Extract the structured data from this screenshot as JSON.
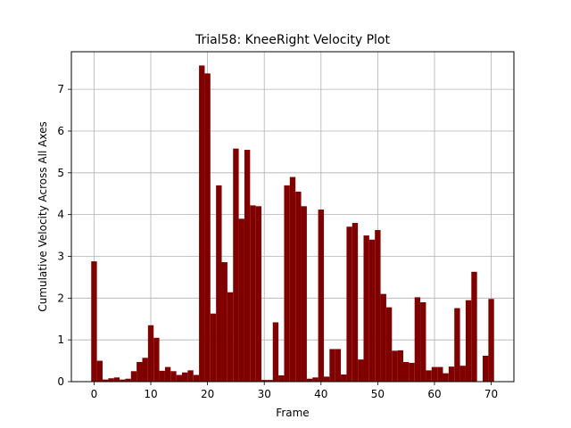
{
  "chart_data": {
    "type": "bar",
    "title": "Trial58: KneeRight Velocity Plot",
    "xlabel": "Frame",
    "ylabel": "Cumulative Velocity Across All Axes",
    "xlim": [
      -4,
      74
    ],
    "ylim": [
      0,
      7.9
    ],
    "xticks": [
      0,
      10,
      20,
      30,
      40,
      50,
      60,
      70
    ],
    "yticks": [
      0,
      1,
      2,
      3,
      4,
      5,
      6,
      7
    ],
    "grid": true,
    "bar_color": "#800000",
    "x": [
      0,
      1,
      2,
      3,
      4,
      5,
      6,
      7,
      8,
      9,
      10,
      11,
      12,
      13,
      14,
      15,
      16,
      17,
      18,
      19,
      20,
      21,
      22,
      23,
      24,
      25,
      26,
      27,
      28,
      29,
      30,
      31,
      32,
      33,
      34,
      35,
      36,
      37,
      38,
      39,
      40,
      41,
      42,
      43,
      44,
      45,
      46,
      47,
      48,
      49,
      50,
      51,
      52,
      53,
      54,
      55,
      56,
      57,
      58,
      59,
      60,
      61,
      62,
      63,
      64,
      65,
      66,
      67,
      68,
      69,
      70
    ],
    "values": [
      2.88,
      0.5,
      0.05,
      0.08,
      0.1,
      0.05,
      0.07,
      0.25,
      0.47,
      0.57,
      1.35,
      1.05,
      0.26,
      0.35,
      0.25,
      0.16,
      0.22,
      0.27,
      0.16,
      7.57,
      7.38,
      1.63,
      4.7,
      2.86,
      2.14,
      5.58,
      3.9,
      5.55,
      4.22,
      4.2,
      0.04,
      0.04,
      1.42,
      0.15,
      4.7,
      4.9,
      4.55,
      4.2,
      0.07,
      0.1,
      4.12,
      0.12,
      0.78,
      0.78,
      0.17,
      3.71,
      3.8,
      0.53,
      3.5,
      3.4,
      3.63,
      2.1,
      1.78,
      0.74,
      0.75,
      0.47,
      0.45,
      2.02,
      1.9,
      0.27,
      0.35,
      0.35,
      0.2,
      0.36,
      1.76,
      0.38,
      1.95,
      2.63,
      0.01,
      0.62,
      1.98
    ]
  }
}
